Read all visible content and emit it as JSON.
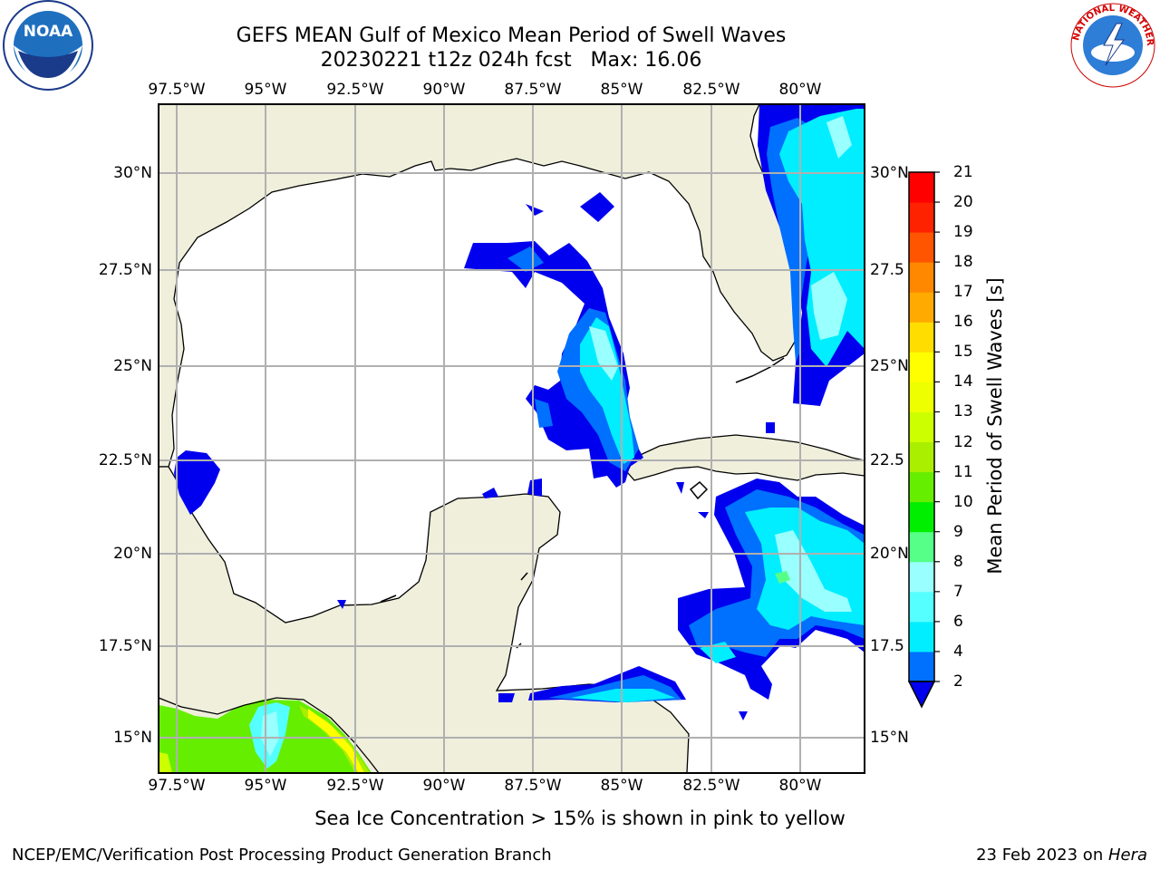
{
  "title": {
    "line1": "GEFS MEAN Gulf of Mexico Mean Period of Swell Waves",
    "line2": "20230221 t12z 024h fcst   Max: 16.06"
  },
  "logos": {
    "left": {
      "icon": "noaa-logo",
      "text": "NOAA",
      "ring": "NATIONAL OCEANIC AND ATMOSPHERIC ADMINISTRATION · U.S. DEPARTMENT OF COMMERCE"
    },
    "right": {
      "icon": "nws-logo",
      "ring": "NATIONAL WEATHER SERVICE"
    }
  },
  "map": {
    "lon_range": [
      -98.5,
      -78.0
    ],
    "lat_range": [
      14.0,
      31.8
    ],
    "land_color": "#efefdc",
    "grid_color": "#b0b0b0",
    "x_ticks": [
      "97.5°W",
      "95°W",
      "92.5°W",
      "90°W",
      "87.5°W",
      "85°W",
      "82.5°W",
      "80°W"
    ],
    "y_ticks_left": [
      "30°N",
      "27.5°N",
      "25°N",
      "22.5°N",
      "20°N",
      "17.5°N",
      "15°N"
    ],
    "y_ticks_right": [
      "30°N",
      "27.5",
      "25°N",
      "22.5",
      "20°N",
      "17.5",
      "15°N"
    ]
  },
  "colorbar": {
    "label": "Mean Period of Swell Waves [s]",
    "ticks": [
      "2",
      "4",
      "6",
      "7",
      "8",
      "9",
      "10",
      "11",
      "12",
      "13",
      "14",
      "15",
      "16",
      "17",
      "18",
      "19",
      "20",
      "21"
    ],
    "colors": [
      "#0070ff",
      "#00ccff",
      "#00eeff",
      "#55ffff",
      "#99ffff",
      "#55ff88",
      "#00ee00",
      "#66ee00",
      "#aaee00",
      "#ccff00",
      "#eeff00",
      "#ffff00",
      "#ffdd00",
      "#ffaa00",
      "#ff8800",
      "#ff5500",
      "#ff2200",
      "#ff0000"
    ],
    "under_color": "#0000ee",
    "extend": "min"
  },
  "note": "Sea Ice Concentration > 15% is shown in pink to yellow",
  "footer": {
    "left": "NCEP/EMC/Verification Post Processing Product Generation Branch",
    "right_date": "23 Feb 2023 on ",
    "right_host": "Hera"
  }
}
